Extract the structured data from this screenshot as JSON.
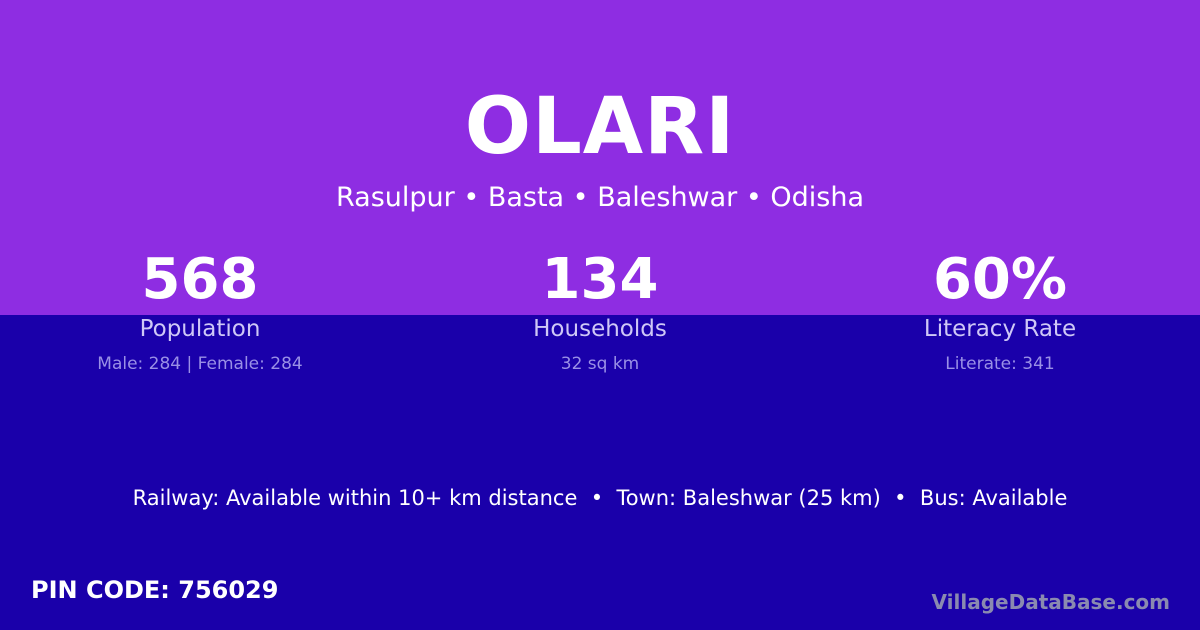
{
  "village": {
    "name": "OLARI",
    "location": "Rasulpur • Basta • Baleshwar • Odisha"
  },
  "stats": [
    {
      "value": "568",
      "label": "Population",
      "detail": "Male: 284 | Female: 284"
    },
    {
      "value": "134",
      "label": "Households",
      "detail": "32 sq km"
    },
    {
      "value": "60%",
      "label": "Literacy Rate",
      "detail": "Literate: 341"
    }
  ],
  "connectivity": "Railway: Available within 10+ km distance  •  Town: Baleshwar (25 km)  •  Bus: Available",
  "pin_code": "PIN CODE: 756029",
  "brand": "VillageDataBase.com",
  "colors": {
    "top_bg": "#8e2de2",
    "bottom_bg": "#1a00aa"
  }
}
